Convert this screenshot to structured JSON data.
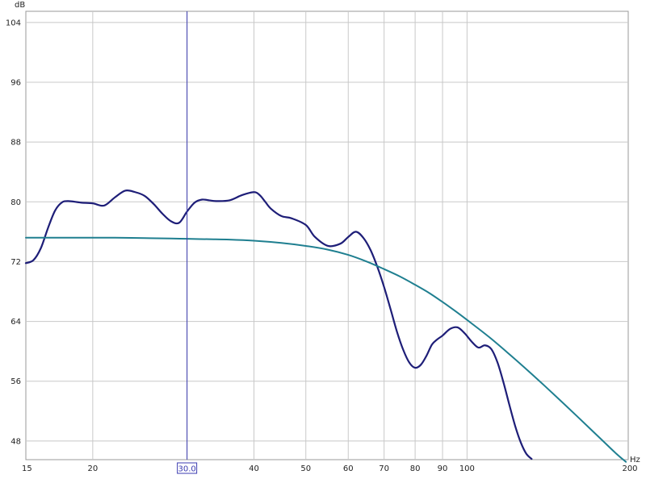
{
  "chart_data": {
    "type": "line",
    "xscale": "log",
    "xlim": [
      15,
      200
    ],
    "ylim": [
      45.5,
      105.5
    ],
    "xunit": "Hz",
    "yunit": "dB",
    "x_ticks": [
      15,
      20,
      30,
      40,
      50,
      60,
      70,
      80,
      90,
      100,
      200
    ],
    "x_tick_labels": [
      "15",
      "20",
      "",
      "40",
      "50",
      "60",
      "70",
      "80",
      "90",
      "100",
      "200"
    ],
    "y_ticks": [
      48,
      56,
      64,
      72,
      80,
      88,
      96,
      104
    ],
    "y_tick_labels": [
      "48",
      "56",
      "64",
      "72",
      "80",
      "88",
      "96",
      "104"
    ],
    "grid": true,
    "cursor": {
      "x": 30,
      "label": "30.0",
      "color": "#3b3bb0"
    },
    "series": [
      {
        "color": "#1e1e78",
        "x": [
          15.0,
          15.5,
          16.0,
          16.5,
          17.0,
          17.5,
          18.0,
          19.0,
          20.0,
          21.0,
          22.0,
          23.0,
          24.0,
          25.0,
          26.0,
          27.0,
          28.0,
          29.0,
          30.0,
          31.0,
          32.0,
          33.0,
          34.0,
          36.0,
          38.0,
          40.0,
          41.0,
          42.0,
          43.0,
          45.0,
          47.0,
          50.0,
          52.0,
          55.0,
          58.0,
          60.0,
          62.0,
          64.0,
          66.0,
          68.0,
          70.0,
          72.0,
          74.0,
          76.0,
          78.0,
          80.0,
          82.0,
          84.0,
          86.0,
          88.0,
          90.0,
          93.0,
          96.0,
          99.0,
          102.0,
          105.0,
          108.0,
          111.0,
          114.0,
          117.0,
          120.0,
          123.0,
          126.0,
          129.0,
          132.0
        ],
        "y": [
          71.8,
          72.2,
          73.8,
          76.5,
          78.8,
          79.9,
          80.1,
          79.9,
          79.8,
          79.5,
          80.6,
          81.5,
          81.3,
          80.8,
          79.7,
          78.4,
          77.4,
          77.2,
          78.7,
          79.9,
          80.3,
          80.2,
          80.1,
          80.2,
          80.9,
          81.3,
          80.9,
          80.0,
          79.1,
          78.1,
          77.8,
          76.9,
          75.3,
          74.1,
          74.4,
          75.3,
          76.0,
          75.2,
          73.6,
          71.3,
          68.6,
          65.6,
          62.6,
          60.2,
          58.5,
          57.8,
          58.2,
          59.4,
          60.9,
          61.6,
          62.1,
          63.0,
          63.2,
          62.4,
          61.3,
          60.5,
          60.8,
          60.3,
          58.5,
          55.8,
          52.8,
          50.0,
          47.8,
          46.3,
          45.6
        ]
      },
      {
        "color": "#1f7f90",
        "x": [
          15.0,
          16.0,
          17.0,
          18.0,
          20.0,
          22.0,
          25.0,
          28.0,
          30.0,
          33.0,
          36.0,
          40.0,
          45.0,
          50.0,
          55.0,
          60.0,
          65.0,
          70.0,
          75.0,
          80.0,
          85.0,
          90.0,
          95.0,
          100.0,
          110.0,
          120.0,
          130.0,
          140.0,
          150.0,
          160.0,
          170.0,
          180.0,
          190.0,
          198.0
        ],
        "y": [
          75.2,
          75.2,
          75.2,
          75.2,
          75.2,
          75.2,
          75.15,
          75.1,
          75.05,
          75.0,
          74.95,
          74.8,
          74.5,
          74.1,
          73.6,
          72.9,
          72.0,
          71.0,
          70.0,
          68.9,
          67.8,
          66.6,
          65.4,
          64.2,
          61.9,
          59.6,
          57.4,
          55.3,
          53.3,
          51.4,
          49.6,
          47.9,
          46.3,
          45.2
        ]
      }
    ]
  }
}
